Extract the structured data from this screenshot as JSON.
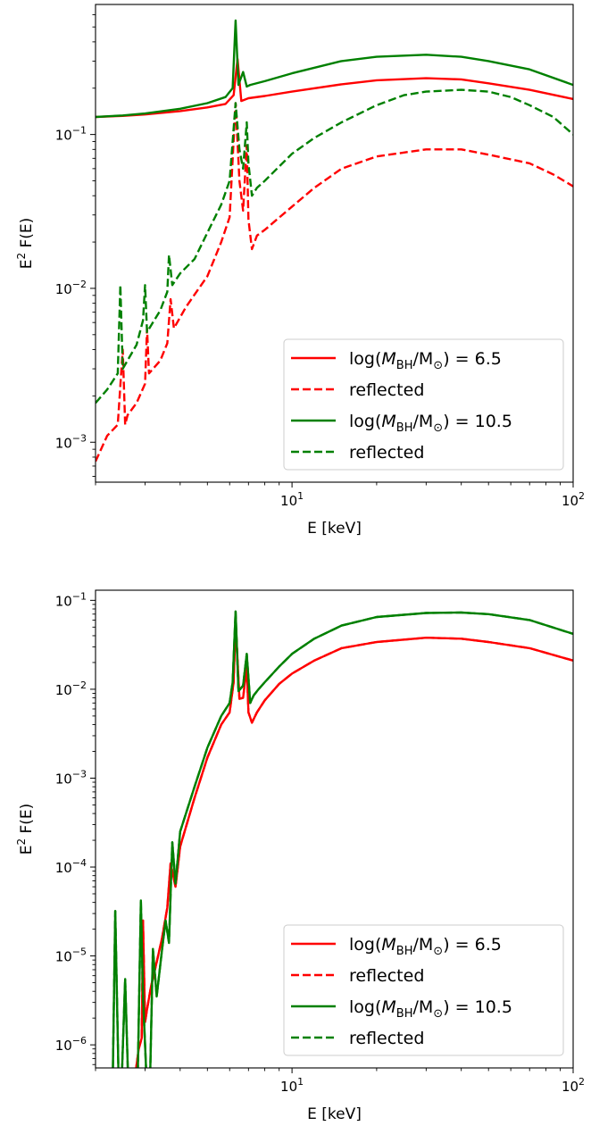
{
  "chart_data": [
    {
      "type": "line",
      "xlabel": "E [keV]",
      "ylabel_base": "E",
      "ylabel_sup": "2",
      "ylabel_rest": " F(E)",
      "xscale": "log",
      "yscale": "log",
      "xlim": [
        2,
        100
      ],
      "ylim": [
        0.00055,
        0.7
      ],
      "xticks": [
        {
          "value": 10,
          "label": "10",
          "exp": "1"
        },
        {
          "value": 100,
          "label": "10",
          "exp": "2"
        }
      ],
      "yticks": [
        {
          "value": 0.001,
          "label": "10",
          "exp": "−3"
        },
        {
          "value": 0.01,
          "label": "10",
          "exp": "−2"
        },
        {
          "value": 0.1,
          "label": "10",
          "exp": "−1"
        }
      ],
      "legend": {
        "location": "lower right",
        "entries": [
          {
            "text_pre": "log(",
            "text_math": "M",
            "text_sub": "BH",
            "text_mid": "/M",
            "text_sun": "⊙",
            "text_post": ") = 6.5",
            "color": "#ff0000",
            "style": "solid"
          },
          {
            "text": "reflected",
            "color": "#ff0000",
            "style": "dashed"
          },
          {
            "text_pre": "log(",
            "text_math": "M",
            "text_sub": "BH",
            "text_mid": "/M",
            "text_sun": "⊙",
            "text_post": ") = 10.5",
            "color": "#008000",
            "style": "solid"
          },
          {
            "text": "reflected",
            "color": "#008000",
            "style": "dashed"
          }
        ]
      },
      "series": [
        {
          "name": "log(M_BH/M_⊙) = 6.5",
          "color": "#ff0000",
          "style": "solid",
          "x": [
            2,
            2.5,
            3,
            4,
            5,
            5.8,
            6.2,
            6.4,
            6.6,
            7,
            8,
            10,
            15,
            20,
            30,
            40,
            50,
            70,
            100
          ],
          "y": [
            0.13,
            0.132,
            0.135,
            0.142,
            0.15,
            0.158,
            0.18,
            0.31,
            0.165,
            0.172,
            0.178,
            0.19,
            0.212,
            0.225,
            0.232,
            0.228,
            0.215,
            0.195,
            0.17
          ]
        },
        {
          "name": "reflected",
          "color": "#ff0000",
          "style": "dashed",
          "x": [
            2,
            2.2,
            2.4,
            2.5,
            2.55,
            2.6,
            2.8,
            3.0,
            3.05,
            3.1,
            3.4,
            3.6,
            3.7,
            3.8,
            4.2,
            5,
            5.6,
            6.0,
            6.3,
            6.5,
            6.7,
            6.9,
            7.0,
            7.2,
            7.5,
            8,
            10,
            12,
            15,
            20,
            30,
            40,
            50,
            70,
            85,
            100
          ],
          "y": [
            0.00075,
            0.0011,
            0.0013,
            0.004,
            0.0013,
            0.0015,
            0.0018,
            0.0024,
            0.0055,
            0.0028,
            0.0034,
            0.0044,
            0.0085,
            0.0055,
            0.0076,
            0.012,
            0.02,
            0.029,
            0.16,
            0.05,
            0.032,
            0.085,
            0.028,
            0.018,
            0.022,
            0.024,
            0.034,
            0.045,
            0.06,
            0.072,
            0.08,
            0.08,
            0.074,
            0.065,
            0.055,
            0.046
          ]
        },
        {
          "name": "log(M_BH/M_⊙) = 10.5",
          "color": "#008000",
          "style": "solid",
          "x": [
            2,
            2.5,
            3,
            4,
            5,
            5.8,
            6.15,
            6.3,
            6.45,
            6.7,
            6.9,
            7.1,
            8,
            10,
            15,
            20,
            30,
            40,
            50,
            70,
            100
          ],
          "y": [
            0.13,
            0.133,
            0.137,
            0.147,
            0.16,
            0.175,
            0.2,
            0.55,
            0.21,
            0.255,
            0.205,
            0.21,
            0.222,
            0.25,
            0.3,
            0.32,
            0.33,
            0.32,
            0.3,
            0.265,
            0.21
          ]
        },
        {
          "name": "reflected",
          "color": "#008000",
          "style": "dashed",
          "x": [
            2,
            2.2,
            2.4,
            2.45,
            2.5,
            2.8,
            2.95,
            3.0,
            3.05,
            3.4,
            3.6,
            3.65,
            3.75,
            4.0,
            4.5,
            5,
            5.6,
            6.0,
            6.3,
            6.5,
            6.7,
            6.9,
            7.0,
            7.2,
            7.5,
            8,
            10,
            12,
            15,
            20,
            25,
            30,
            40,
            50,
            60,
            70,
            85,
            100
          ],
          "y": [
            0.0018,
            0.0022,
            0.0028,
            0.0105,
            0.003,
            0.0043,
            0.0062,
            0.0105,
            0.0052,
            0.0072,
            0.0095,
            0.0165,
            0.0105,
            0.0125,
            0.0155,
            0.023,
            0.035,
            0.05,
            0.16,
            0.08,
            0.06,
            0.12,
            0.065,
            0.04,
            0.045,
            0.05,
            0.075,
            0.095,
            0.12,
            0.155,
            0.18,
            0.19,
            0.195,
            0.19,
            0.175,
            0.155,
            0.13,
            0.1
          ]
        }
      ]
    },
    {
      "type": "line",
      "xlabel": "E [keV]",
      "ylabel_base": "E",
      "ylabel_sup": "2",
      "ylabel_rest": " F(E)",
      "xscale": "log",
      "yscale": "log",
      "xlim": [
        2,
        100
      ],
      "ylim": [
        5.5e-07,
        0.13
      ],
      "xticks": [
        {
          "value": 10,
          "label": "10",
          "exp": "1"
        },
        {
          "value": 100,
          "label": "10",
          "exp": "2"
        }
      ],
      "yticks": [
        {
          "value": 1e-06,
          "label": "10",
          "exp": "−6"
        },
        {
          "value": 1e-05,
          "label": "10",
          "exp": "−5"
        },
        {
          "value": 0.0001,
          "label": "10",
          "exp": "−4"
        },
        {
          "value": 0.001,
          "label": "10",
          "exp": "−3"
        },
        {
          "value": 0.01,
          "label": "10",
          "exp": "−2"
        },
        {
          "value": 0.1,
          "label": "10",
          "exp": "−1"
        }
      ],
      "legend": {
        "location": "lower right",
        "entries": [
          {
            "text_pre": "log(",
            "text_math": "M",
            "text_sub": "BH",
            "text_mid": "/M",
            "text_sun": "⊙",
            "text_post": ") = 6.5",
            "color": "#ff0000",
            "style": "solid"
          },
          {
            "text": "reflected",
            "color": "#ff0000",
            "style": "dashed"
          },
          {
            "text_pre": "log(",
            "text_math": "M",
            "text_sub": "BH",
            "text_mid": "/M",
            "text_sun": "⊙",
            "text_post": ") = 10.5",
            "color": "#008000",
            "style": "solid"
          },
          {
            "text": "reflected",
            "color": "#008000",
            "style": "dashed"
          }
        ]
      },
      "series": [
        {
          "name": "log(M_BH/M_⊙) = 6.5",
          "color": "#ff0000",
          "style": "solid",
          "x": [
            2.78,
            2.85,
            2.92,
            2.95,
            3.0,
            3.05,
            3.15,
            3.3,
            3.45,
            3.6,
            3.7,
            3.85,
            4.0,
            4.5,
            5,
            5.6,
            6.0,
            6.2,
            6.3,
            6.5,
            6.7,
            6.9,
            7.0,
            7.2,
            7.5,
            8,
            9,
            10,
            12,
            15,
            20,
            30,
            40,
            50,
            70,
            100
          ],
          "y": [
            5e-07,
            9e-07,
            1.2e-06,
            2.5e-05,
            1.8e-06,
            2.5e-06,
            4.5e-06,
            8.5e-06,
            1.6e-05,
            3.5e-05,
            0.00011,
            6e-05,
            0.00017,
            0.0006,
            0.0017,
            0.004,
            0.0055,
            0.012,
            0.06,
            0.0078,
            0.008,
            0.018,
            0.0055,
            0.0042,
            0.0055,
            0.0075,
            0.0115,
            0.015,
            0.021,
            0.029,
            0.034,
            0.038,
            0.037,
            0.034,
            0.029,
            0.021
          ]
        },
        {
          "name": "reflected",
          "color": "#ff0000",
          "style": "dashed",
          "x": [
            2.78,
            2.85,
            2.92,
            2.95,
            3.0,
            3.05,
            3.15,
            3.3,
            3.45,
            3.6,
            3.7,
            3.85,
            4.0,
            4.5,
            5,
            5.6,
            6.0,
            6.2,
            6.3,
            6.5,
            6.7,
            6.9,
            7.0,
            7.2,
            7.5,
            8,
            9,
            10,
            12,
            15,
            20,
            30,
            40,
            50,
            70,
            100
          ],
          "y": [
            5e-07,
            9e-07,
            1.2e-06,
            2.5e-05,
            1.8e-06,
            2.5e-06,
            4.5e-06,
            8.5e-06,
            1.6e-05,
            3.5e-05,
            0.00011,
            6e-05,
            0.00017,
            0.0006,
            0.0017,
            0.004,
            0.0055,
            0.012,
            0.06,
            0.0078,
            0.008,
            0.018,
            0.0055,
            0.0042,
            0.0055,
            0.0075,
            0.0115,
            0.015,
            0.021,
            0.029,
            0.034,
            0.038,
            0.037,
            0.034,
            0.029,
            0.021
          ]
        },
        {
          "name": "log(M_BH/M_⊙) = 10.5",
          "color": "#008000",
          "style": "solid",
          "x": [
            2.3,
            2.35,
            2.42,
            2.47,
            2.55,
            2.62,
            2.7,
            2.82,
            2.9,
            2.95,
            3.0,
            3.05,
            3.12,
            3.2,
            3.3,
            3.45,
            3.55,
            3.65,
            3.75,
            3.85,
            4.0,
            4.5,
            5,
            5.6,
            6.0,
            6.15,
            6.3,
            6.45,
            6.7,
            6.9,
            7.1,
            7.3,
            7.6,
            8,
            9,
            10,
            12,
            15,
            20,
            30,
            40,
            50,
            70,
            100
          ],
          "y": [
            3e-07,
            3.2e-05,
            3e-07,
            3e-07,
            5.5e-06,
            3e-07,
            3e-07,
            3e-07,
            4.2e-05,
            3.5e-06,
            1e-06,
            3e-07,
            3e-07,
            1.2e-05,
            3.5e-06,
            1.2e-05,
            2.5e-05,
            1.4e-05,
            0.00019,
            6.5e-05,
            0.00025,
            0.0008,
            0.0022,
            0.005,
            0.007,
            0.012,
            0.075,
            0.0095,
            0.011,
            0.025,
            0.007,
            0.0085,
            0.01,
            0.012,
            0.018,
            0.025,
            0.037,
            0.052,
            0.065,
            0.072,
            0.073,
            0.07,
            0.06,
            0.042
          ]
        },
        {
          "name": "reflected",
          "color": "#008000",
          "style": "dashed",
          "x": [
            2.3,
            2.35,
            2.42,
            2.47,
            2.55,
            2.62,
            2.7,
            2.82,
            2.9,
            2.95,
            3.0,
            3.05,
            3.12,
            3.2,
            3.3,
            3.45,
            3.55,
            3.65,
            3.75,
            3.85,
            4.0,
            4.5,
            5,
            5.6,
            6.0,
            6.15,
            6.3,
            6.45,
            6.7,
            6.9,
            7.1,
            7.3,
            7.6,
            8,
            9,
            10,
            12,
            15,
            20,
            30,
            40,
            50,
            70,
            100
          ],
          "y": [
            3e-07,
            3.2e-05,
            3e-07,
            3e-07,
            5.5e-06,
            3e-07,
            3e-07,
            3e-07,
            4.2e-05,
            3.5e-06,
            1e-06,
            3e-07,
            3e-07,
            1.2e-05,
            3.5e-06,
            1.2e-05,
            2.5e-05,
            1.4e-05,
            0.00019,
            6.5e-05,
            0.00025,
            0.0008,
            0.0022,
            0.005,
            0.007,
            0.012,
            0.075,
            0.0095,
            0.011,
            0.025,
            0.007,
            0.0085,
            0.01,
            0.012,
            0.018,
            0.025,
            0.037,
            0.052,
            0.065,
            0.072,
            0.073,
            0.07,
            0.06,
            0.042
          ]
        }
      ]
    }
  ]
}
